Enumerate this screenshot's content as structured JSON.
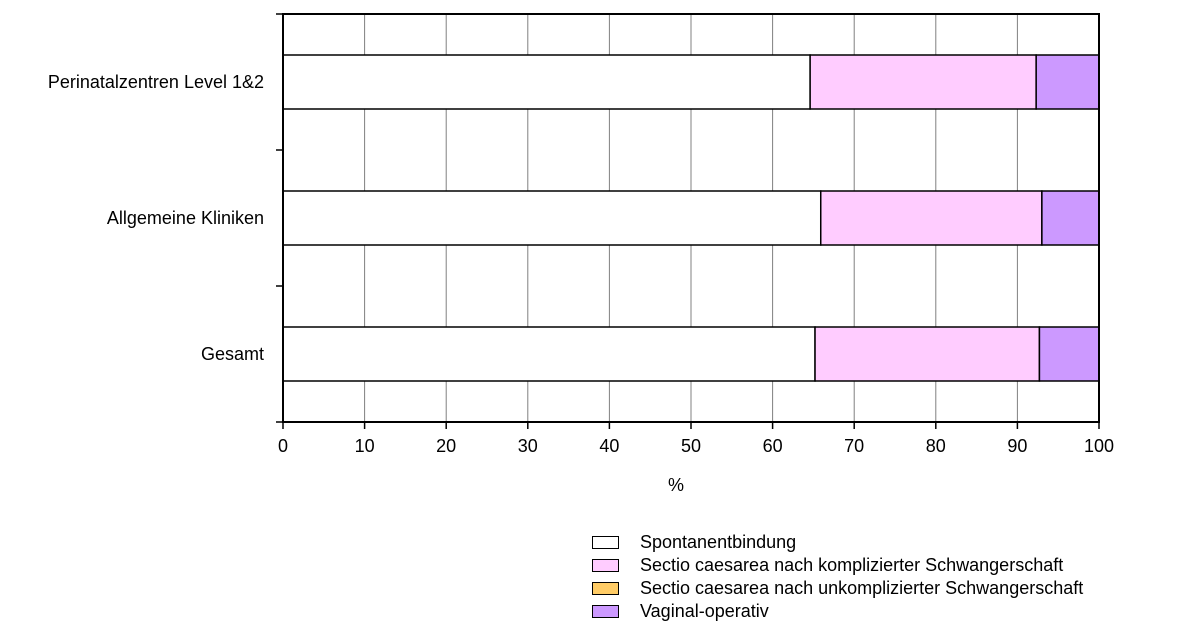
{
  "chart_data": {
    "type": "bar",
    "orientation": "horizontal",
    "stacked": true,
    "categories": [
      "Perinatalzentren Level 1&2",
      "Allgemeine Kliniken",
      "Gesamt"
    ],
    "series": [
      {
        "name": "Spontanentbindung",
        "color": "#ffffff",
        "values": [
          64.6,
          65.9,
          65.2
        ]
      },
      {
        "name": "Sectio caesarea nach komplizierter Schwangerschaft",
        "color": "#ffccff",
        "values": [
          27.7,
          27.1,
          27.5
        ]
      },
      {
        "name": "Sectio caesarea nach unkomplizierter Schwangerschaft",
        "color": "#ffcc66",
        "values": [
          0,
          0,
          0
        ]
      },
      {
        "name": "Vaginal-operativ",
        "color": "#cc99ff",
        "values": [
          7.7,
          7.0,
          7.3
        ]
      }
    ],
    "xlabel": "%",
    "ylabel": "",
    "xlim": [
      0,
      100
    ],
    "xticks": [
      0,
      10,
      20,
      30,
      40,
      50,
      60,
      70,
      80,
      90,
      100
    ],
    "grid": "vertical",
    "legend_position": "bottom-right"
  }
}
